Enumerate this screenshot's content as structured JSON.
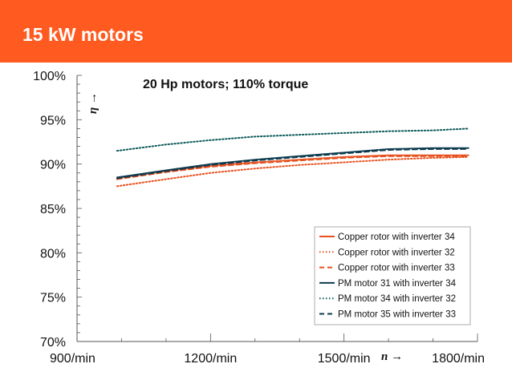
{
  "slide": {
    "title": "15 kW motors"
  },
  "chart_data": {
    "type": "line",
    "title": "20 Hp motors; 110% torque",
    "ylabel": "η →",
    "xlabel": "n →",
    "xlim": [
      900,
      1800
    ],
    "ylim": [
      70,
      100
    ],
    "x_ticks": [
      900,
      1200,
      1500,
      1800
    ],
    "x_tick_labels": [
      "900/min",
      "1200/min",
      "1500/min",
      "1800/min"
    ],
    "y_ticks": [
      70,
      75,
      80,
      85,
      90,
      95,
      100
    ],
    "y_tick_labels": [
      "70%",
      "75%",
      "80%",
      "85%",
      "90%",
      "95%",
      "100%"
    ],
    "legend_position": "bottom-right",
    "grid": false,
    "series": [
      {
        "name": "Copper rotor with inverter 34",
        "color": "#e8501e",
        "dash": "solid",
        "x": [
          990,
          1100,
          1200,
          1300,
          1400,
          1500,
          1600,
          1700,
          1780
        ],
        "y": [
          88.4,
          89.2,
          89.8,
          90.2,
          90.5,
          90.8,
          91.0,
          91.0,
          91.0
        ]
      },
      {
        "name": "Copper rotor with inverter 32",
        "color": "#e8501e",
        "dash": "dotted",
        "x": [
          990,
          1100,
          1200,
          1300,
          1400,
          1500,
          1600,
          1700,
          1780
        ],
        "y": [
          87.5,
          88.3,
          89.0,
          89.5,
          89.9,
          90.2,
          90.5,
          90.7,
          90.8
        ]
      },
      {
        "name": "Copper rotor with inverter 33",
        "color": "#e8501e",
        "dash": "dashed",
        "x": [
          990,
          1100,
          1200,
          1300,
          1400,
          1500,
          1600,
          1700,
          1780
        ],
        "y": [
          88.3,
          89.1,
          89.7,
          90.1,
          90.4,
          90.7,
          90.9,
          90.9,
          90.9
        ]
      },
      {
        "name": "PM motor 31 with inverter 34",
        "color": "#0d3b4f",
        "dash": "solid",
        "x": [
          990,
          1100,
          1200,
          1300,
          1400,
          1500,
          1600,
          1700,
          1780
        ],
        "y": [
          88.5,
          89.3,
          90.0,
          90.5,
          90.9,
          91.3,
          91.7,
          91.8,
          91.8
        ]
      },
      {
        "name": "PM motor 34 with inverter 32",
        "color": "#0d5a5a",
        "dash": "dotted",
        "x": [
          990,
          1100,
          1200,
          1300,
          1400,
          1500,
          1600,
          1700,
          1780
        ],
        "y": [
          91.5,
          92.2,
          92.7,
          93.1,
          93.3,
          93.5,
          93.7,
          93.8,
          94.0
        ]
      },
      {
        "name": "PM motor 35 with inverter 33",
        "color": "#0d3b4f",
        "dash": "dashed",
        "x": [
          990,
          1100,
          1200,
          1300,
          1400,
          1500,
          1600,
          1700,
          1780
        ],
        "y": [
          88.4,
          89.2,
          89.9,
          90.4,
          90.8,
          91.2,
          91.6,
          91.7,
          91.7
        ]
      }
    ]
  }
}
